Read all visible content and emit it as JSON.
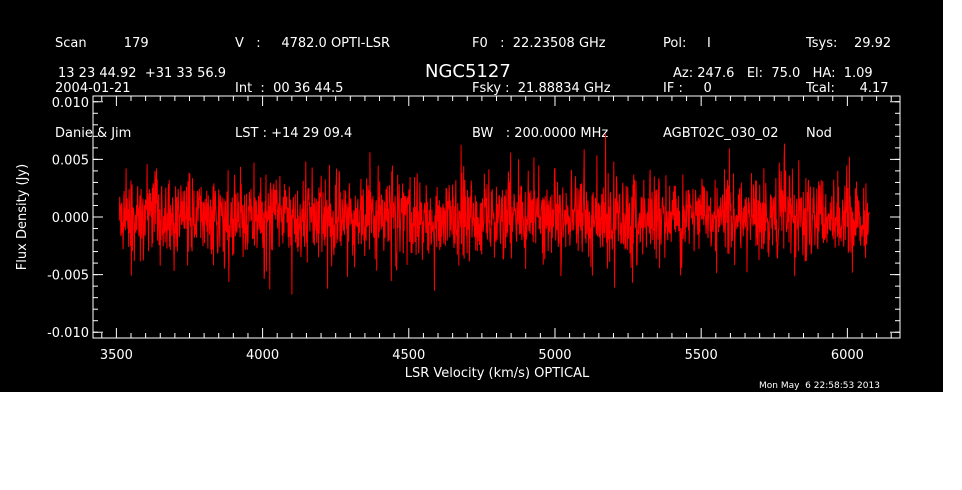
{
  "header": {
    "col1": [
      "Scan         179",
      "2004-01-21",
      "Danie & Jim"
    ],
    "col2": [
      "V   :     4782.0 OPTI-LSR",
      "Int  :  00 36 44.5",
      "LST : +14 29 09.4"
    ],
    "col3": [
      "F0   :  22.23508 GHz",
      "Fsky :  21.88834 GHz",
      "BW   : 200.0000 MHz"
    ],
    "col4": [
      "Pol:     I",
      "IF :     0",
      "AGBT02C_030_02"
    ],
    "col5": [
      "Tsys:    29.92",
      "Tcal:      4.17",
      "Nod"
    ],
    "coords": "13 23 44.92  +31 33 56.9",
    "object": "NGC5127",
    "azel": "Az: 247.6   El:  75.0   HA:  1.09"
  },
  "timestamp": "Mon May  6 22:58:53 2013",
  "colors": {
    "background": "#000000",
    "trace": "#ff0000",
    "axes": "#ffffff"
  },
  "chart_data": {
    "type": "line",
    "title": "NGC5127",
    "xlabel": "LSR Velocity (km/s) OPTICAL",
    "ylabel": "Flux Density (Jy)",
    "xlim": [
      3420,
      6180
    ],
    "ylim": [
      -0.0105,
      0.0105
    ],
    "xticks": [
      3500,
      4000,
      4500,
      5000,
      5500,
      6000
    ],
    "xtick_labels": [
      "3500",
      "4000",
      "4500",
      "5000",
      "5500",
      "6000"
    ],
    "yticks": [
      -0.01,
      -0.005,
      0.0,
      0.005,
      0.01
    ],
    "ytick_labels": [
      "-0.010",
      "-0.005",
      "0.000",
      "0.005",
      "0.010"
    ],
    "grid": false,
    "legend": "none",
    "series": [
      {
        "x_range": [
          3510,
          6075
        ],
        "mean": 0.0,
        "rms": 0.0019,
        "peak_max": 0.0078,
        "peak_min": -0.0068,
        "n_points": 2000
      }
    ]
  }
}
